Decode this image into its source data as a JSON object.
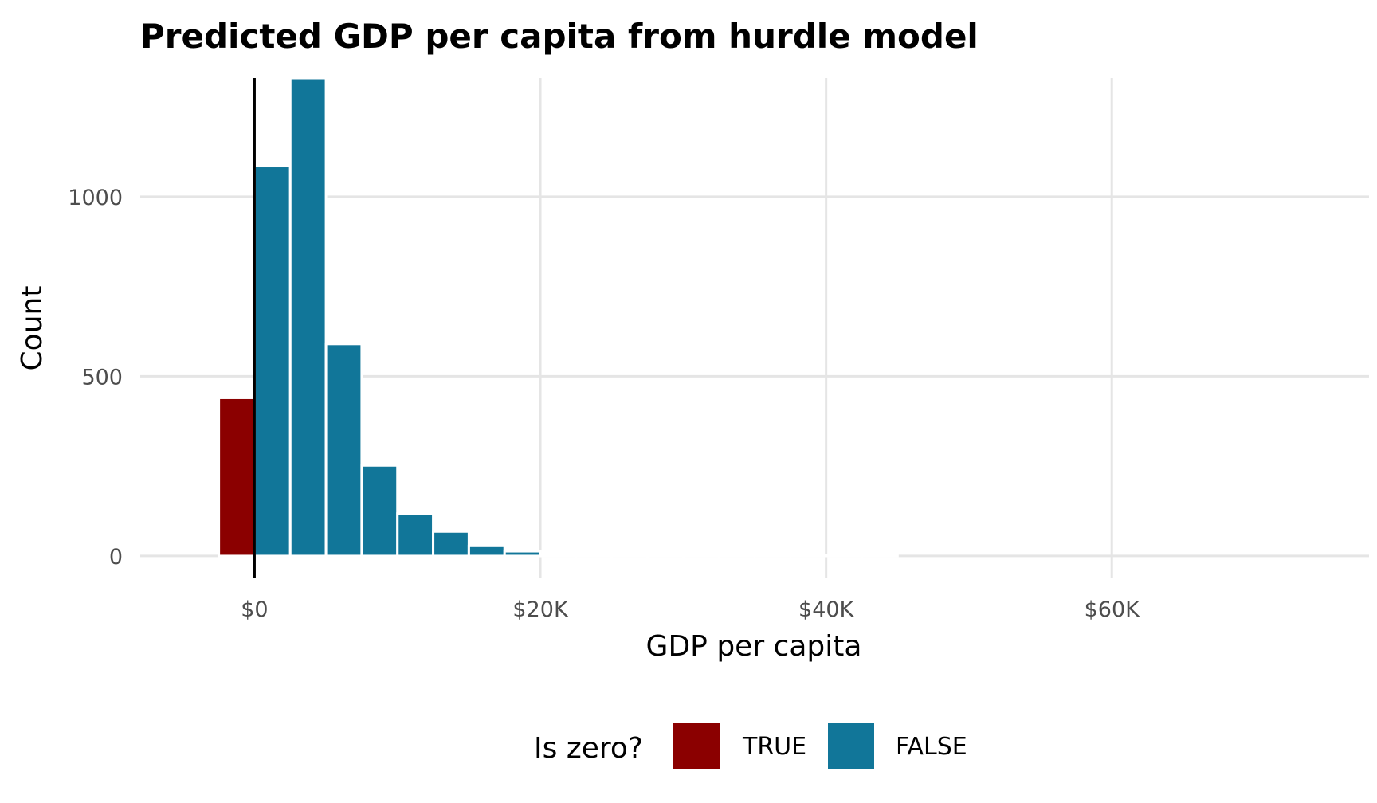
{
  "chart_data": {
    "type": "bar",
    "title": "Predicted GDP per capita from hurdle model",
    "xlabel": "GDP per capita",
    "ylabel": "Count",
    "xlim": [
      -8000,
      78000
    ],
    "ylim": [
      -60,
      1330
    ],
    "x_ticks": [
      {
        "value": 0,
        "label": "$0"
      },
      {
        "value": 20000,
        "label": "$20K"
      },
      {
        "value": 40000,
        "label": "$40K"
      },
      {
        "value": 60000,
        "label": "$60K"
      }
    ],
    "y_ticks": [
      {
        "value": 0,
        "label": "0"
      },
      {
        "value": 500,
        "label": "500"
      },
      {
        "value": 1000,
        "label": "1000"
      }
    ],
    "bin_width": 2500,
    "reference_line_x": 0,
    "grid": true,
    "legend": {
      "title": "Is zero?",
      "position": "bottom",
      "entries": [
        {
          "label": "TRUE",
          "color": "#8B0000"
        },
        {
          "label": "FALSE",
          "color": "#117699"
        }
      ]
    },
    "series": [
      {
        "name": "TRUE",
        "color": "#8B0000",
        "bins": [
          {
            "x": -1250,
            "count": 440
          }
        ]
      },
      {
        "name": "FALSE",
        "color": "#117699",
        "bins": [
          {
            "x": 1250,
            "count": 1085
          },
          {
            "x": 3750,
            "count": 1330
          },
          {
            "x": 6250,
            "count": 590
          },
          {
            "x": 8750,
            "count": 252
          },
          {
            "x": 11250,
            "count": 118
          },
          {
            "x": 13750,
            "count": 68
          },
          {
            "x": 16250,
            "count": 28
          },
          {
            "x": 18750,
            "count": 13
          },
          {
            "x": 21250,
            "count": 4
          },
          {
            "x": 23750,
            "count": 2
          },
          {
            "x": 26250,
            "count": 1
          },
          {
            "x": 28750,
            "count": 1
          },
          {
            "x": 31250,
            "count": 1
          },
          {
            "x": 33750,
            "count": 1
          },
          {
            "x": 36250,
            "count": 1
          },
          {
            "x": 38750,
            "count": 1
          },
          {
            "x": 41250,
            "count": 1
          },
          {
            "x": 43750,
            "count": 1
          }
        ]
      }
    ]
  }
}
